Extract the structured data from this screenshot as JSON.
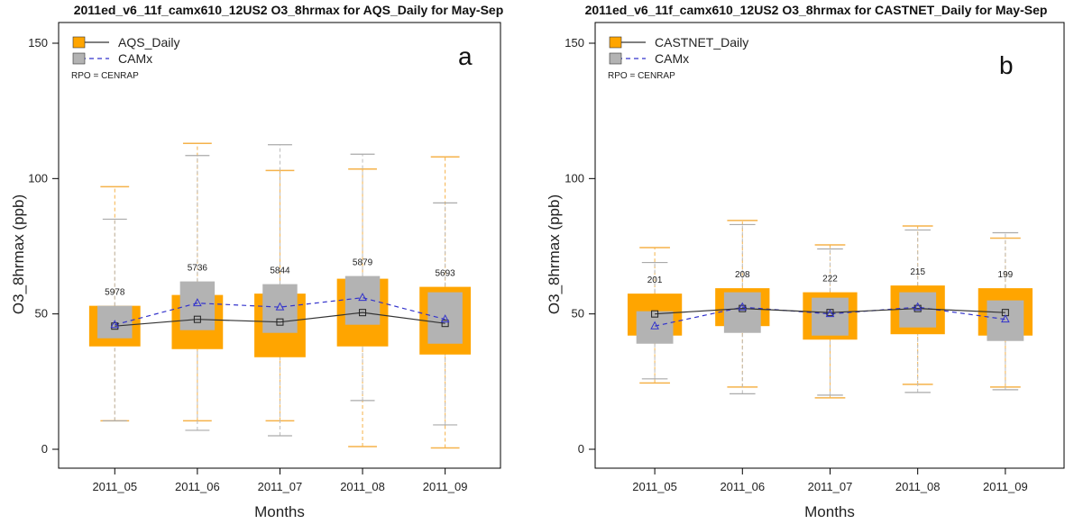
{
  "chart_data": [
    {
      "type": "box",
      "panel_letter": "a",
      "title": "2011ed_v6_11f_camx610_12US2 O3_8hrmax for AQS_Daily for May-Sep",
      "xlabel": "Months",
      "ylabel": "O3_8hrmax (ppb)",
      "ylim": [
        0,
        150
      ],
      "yticks": [
        0,
        50,
        100,
        150
      ],
      "categories": [
        "2011_05",
        "2011_06",
        "2011_07",
        "2011_08",
        "2011_09"
      ],
      "counts": [
        "5978",
        "5736",
        "5844",
        "5879",
        "5693"
      ],
      "legend": {
        "placement": "top-left",
        "rpo_text": "RPO = CENRAP"
      },
      "series": [
        {
          "name": "AQS_Daily",
          "box_color": "#FFA500",
          "line_color": "#333333",
          "marker": "square",
          "q1": [
            38,
            37,
            34,
            38,
            35
          ],
          "q3": [
            53,
            57,
            57.5,
            63,
            60
          ],
          "whisker_low": [
            10.5,
            10.5,
            10.5,
            1,
            0.5
          ],
          "whisker_high": [
            97,
            113,
            103,
            103.5,
            108
          ],
          "median": [
            45.5,
            48,
            47,
            50.5,
            46.5
          ]
        },
        {
          "name": "CAMx",
          "box_color": "#B3B3B3",
          "line_color": "#3333CC",
          "marker": "triangle",
          "q1": [
            41,
            44,
            43,
            46,
            39
          ],
          "q3": [
            53,
            62,
            61,
            64,
            58
          ],
          "whisker_low": [
            10.5,
            7,
            5,
            18,
            9
          ],
          "whisker_high": [
            85,
            108.5,
            112.5,
            109,
            91
          ],
          "median": [
            46,
            54,
            52.5,
            56,
            48
          ]
        }
      ]
    },
    {
      "type": "box",
      "panel_letter": "b",
      "title": "2011ed_v6_11f_camx610_12US2 O3_8hrmax for CASTNET_Daily for May-Sep",
      "xlabel": "Months",
      "ylabel": "O3_8hrmax (ppb)",
      "ylim": [
        0,
        150
      ],
      "yticks": [
        0,
        50,
        100,
        150
      ],
      "categories": [
        "2011_05",
        "2011_06",
        "2011_07",
        "2011_08",
        "2011_09"
      ],
      "counts": [
        "201",
        "208",
        "222",
        "215",
        "199"
      ],
      "legend": {
        "placement": "top-left",
        "rpo_text": "RPO = CENRAP"
      },
      "series": [
        {
          "name": "CASTNET_Daily",
          "box_color": "#FFA500",
          "line_color": "#333333",
          "marker": "square",
          "q1": [
            42,
            45.5,
            40.5,
            42.5,
            42
          ],
          "q3": [
            57.5,
            59.5,
            58,
            60.5,
            59.5
          ],
          "whisker_low": [
            24.5,
            23,
            19,
            24,
            23
          ],
          "whisker_high": [
            74.5,
            84.5,
            75.5,
            82.5,
            78
          ],
          "median": [
            50,
            52,
            50.5,
            52,
            50.5
          ]
        },
        {
          "name": "CAMx",
          "box_color": "#B3B3B3",
          "line_color": "#3333CC",
          "marker": "triangle",
          "q1": [
            39,
            43,
            42,
            45,
            40
          ],
          "q3": [
            51,
            58,
            56,
            58,
            55
          ],
          "whisker_low": [
            26,
            20.5,
            20,
            21,
            22
          ],
          "whisker_high": [
            69,
            83,
            74,
            81,
            80
          ],
          "median": [
            45.5,
            52.5,
            50,
            52.5,
            48
          ]
        }
      ]
    }
  ]
}
